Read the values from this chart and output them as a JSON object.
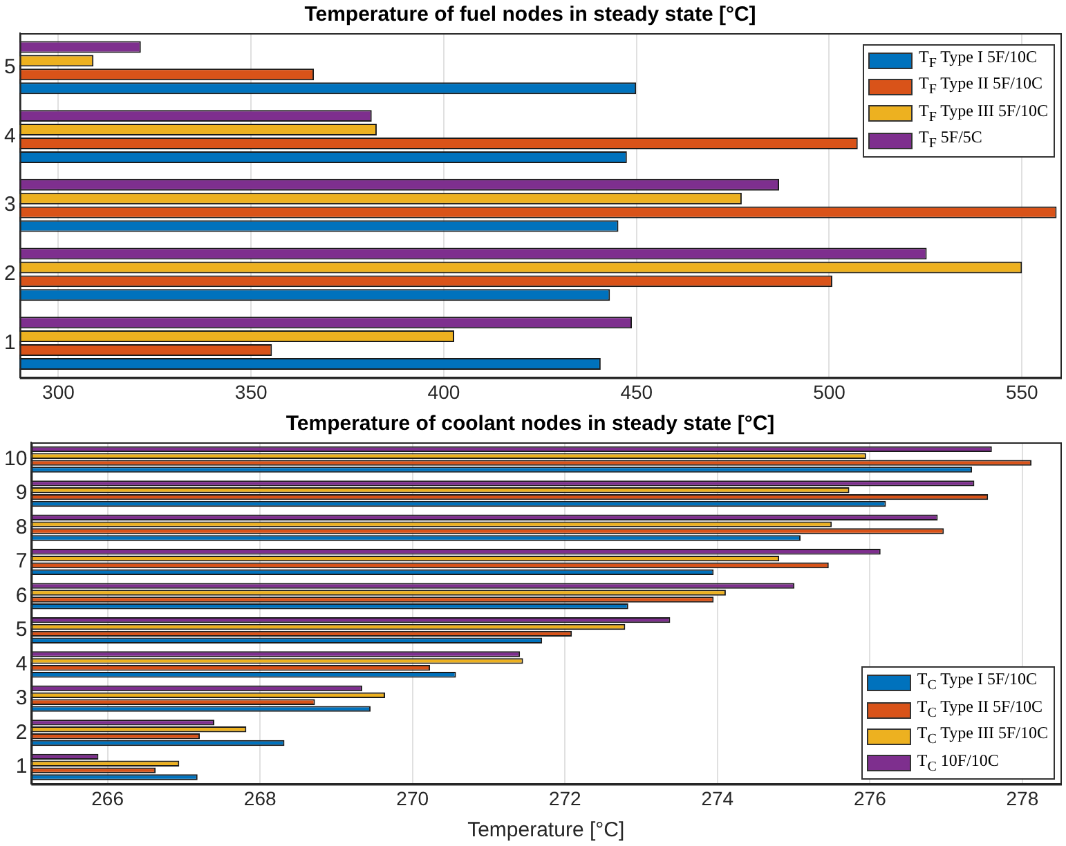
{
  "chart_data": [
    {
      "type": "bar",
      "orientation": "horizontal",
      "title": "Temperature of fuel nodes in steady state [°C]",
      "categories": [
        "5",
        "4",
        "3",
        "2",
        "1"
      ],
      "xlim": [
        290,
        560
      ],
      "xticks": [
        300,
        350,
        400,
        450,
        500,
        550
      ],
      "grid": "x",
      "legend": "top right",
      "series": [
        {
          "name": "T$_{F}$ Type I 5F/10C",
          "color": "#0072bd",
          "values": [
            449.9,
            447.5,
            445.3,
            443.1,
            440.7
          ]
        },
        {
          "name": "T$_{F}$ Type II 5F/10C",
          "color": "#d95319",
          "values": [
            366.3,
            507.4,
            559,
            500.8,
            355.4
          ]
        },
        {
          "name": "T$_{F}$ Type III 5F/10C",
          "color": "#edb120",
          "values": [
            309.1,
            382.6,
            477.3,
            550,
            402.7
          ]
        },
        {
          "name": "T$_{F}$ 5F/5C",
          "color": "#7e2f8e",
          "values": [
            321.4,
            381.3,
            487,
            525.3,
            448.8
          ]
        }
      ]
    },
    {
      "type": "bar",
      "orientation": "horizontal",
      "title": "Temperature of coolant nodes in steady state [°C]",
      "xlabel": "Temperature [°C]",
      "categories": [
        "10",
        "9",
        "8",
        "7",
        "6",
        "5",
        "4",
        "3",
        "2",
        "1"
      ],
      "xlim": [
        265,
        278.5
      ],
      "xticks": [
        266,
        268,
        270,
        272,
        274,
        276,
        278
      ],
      "grid": "x",
      "legend": "bottom right",
      "series": [
        {
          "name": "T$_{C}$ Type I 5F/10C",
          "color": "#0072bd",
          "values": [
            277.34,
            276.21,
            275.09,
            273.95,
            272.83,
            271.7,
            270.57,
            269.45,
            268.32,
            267.18
          ]
        },
        {
          "name": "T$_{C}$ Type II 5F/10C",
          "color": "#d95319",
          "values": [
            278.12,
            277.55,
            276.97,
            275.46,
            273.95,
            272.09,
            270.23,
            268.72,
            267.21,
            266.63
          ]
        },
        {
          "name": "T$_{C}$ Type III 5F/10C",
          "color": "#edb120",
          "values": [
            275.95,
            275.73,
            275.5,
            274.81,
            274.11,
            272.79,
            271.45,
            269.64,
            267.82,
            266.94
          ]
        },
        {
          "name": "T$_{C}$ 10F/10C",
          "color": "#7e2f8e",
          "values": [
            277.6,
            277.37,
            276.89,
            276.14,
            275.01,
            273.38,
            271.41,
            269.34,
            267.4,
            265.88
          ]
        }
      ]
    }
  ]
}
